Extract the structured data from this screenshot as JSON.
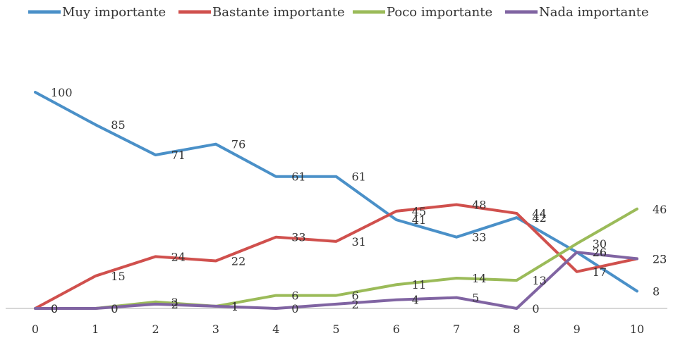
{
  "chart_data": {
    "type": "line",
    "x": [
      0,
      1,
      2,
      3,
      4,
      5,
      6,
      7,
      8,
      9,
      10
    ],
    "xlim": [
      0,
      10
    ],
    "ylim": [
      0,
      100
    ],
    "grid": false,
    "legend_position": "top",
    "series": [
      {
        "name": "Muy importante",
        "color": "#4a90c8",
        "values": [
          100,
          85,
          71,
          76,
          61,
          61,
          41,
          33,
          42,
          26,
          8
        ],
        "labels": [
          "100",
          "85",
          "71",
          "76",
          "61",
          "61",
          "41",
          "33",
          "42",
          "26",
          "8"
        ]
      },
      {
        "name": "Bastante importante",
        "color": "#d0504d",
        "values": [
          0,
          15,
          24,
          22,
          33,
          31,
          45,
          48,
          44,
          17,
          23
        ],
        "labels": [
          "0",
          "15",
          "24",
          "22",
          "33",
          "31",
          "45",
          "48",
          "44",
          "17",
          "23"
        ]
      },
      {
        "name": "Poco importante",
        "color": "#9bbb59",
        "values": [
          0,
          0,
          3,
          1,
          6,
          6,
          11,
          14,
          13,
          30,
          46
        ],
        "labels": [
          "0",
          "0",
          "3",
          "1",
          "6",
          "6",
          "11",
          "14",
          "13",
          "30",
          "46"
        ]
      },
      {
        "name": "Nada importante",
        "color": "#8064a2",
        "values": [
          0,
          0,
          2,
          1,
          0,
          2,
          4,
          5,
          0,
          26,
          23
        ],
        "labels": [
          "0",
          "0",
          "2",
          "1",
          "0",
          "2",
          "4",
          "5",
          "0",
          "26",
          "23"
        ]
      }
    ]
  }
}
